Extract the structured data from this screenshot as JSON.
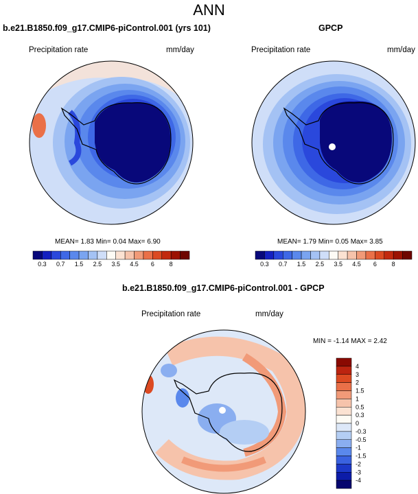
{
  "figure": {
    "title": "ANN",
    "top_left": {
      "title": "b.e21.B1850.f09_g17.CMIP6-piControl.001 (yrs 101)",
      "variable": "Precipitation rate",
      "units": "mm/day",
      "stats": "MEAN=   1.83  Min=   0.04  Max=   6.90"
    },
    "top_right": {
      "title": "GPCP",
      "variable": "Precipitation rate",
      "units": "mm/day",
      "stats": "MEAN=   1.79  Min=   0.05  Max=   3.85"
    },
    "bottom": {
      "title": "b.e21.B1850.f09_g17.CMIP6-piControl.001 - GPCP",
      "variable": "Precipitation rate",
      "units": "mm/day",
      "stats": "MIN =  -1.14 MAX =   2.42"
    }
  },
  "colorbar_top": {
    "labels": [
      "0.3",
      "0.7",
      "1.5",
      "2.5",
      "3.5",
      "4.5",
      "6",
      "8"
    ],
    "colors": [
      "#08087a",
      "#1420c0",
      "#2a48dc",
      "#3e68e6",
      "#5a88ec",
      "#7aa4f0",
      "#a4c2f4",
      "#cfdef8",
      "#fdfbf5",
      "#fbe2d2",
      "#f6c3ab",
      "#f19a78",
      "#ea7048",
      "#dc4a22",
      "#c2290e",
      "#9c1202",
      "#6e0600"
    ]
  },
  "colorbar_bottom": {
    "labels": [
      "4",
      "3",
      "2",
      "1.5",
      "1",
      "0.5",
      "0.3",
      "0",
      "-0.3",
      "-0.5",
      "-1",
      "-1.5",
      "-2",
      "-3",
      "-4"
    ],
    "colors": [
      "#8a0a02",
      "#bc2410",
      "#dc4a22",
      "#ea7048",
      "#f19a78",
      "#f6c3ab",
      "#fbe2d2",
      "#fdfbf5",
      "#dde8f8",
      "#b4cef4",
      "#8aaef0",
      "#5a88ec",
      "#3a62e0",
      "#1c38c8",
      "#0c1ca8",
      "#06066e"
    ]
  },
  "colors": {
    "land_outline": "#000000",
    "missing": "#ffffff"
  }
}
